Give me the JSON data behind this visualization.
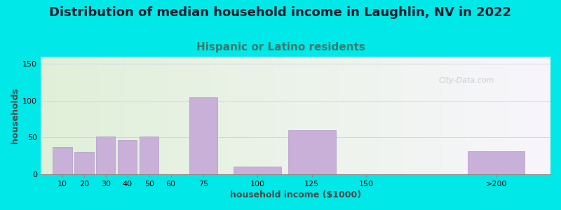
{
  "title": "Distribution of median household income in Laughlin, NV in 2022",
  "subtitle": "Hispanic or Latino residents",
  "xlabel": "household income ($1000)",
  "ylabel": "households",
  "bar_labels": [
    "10",
    "20",
    "30",
    "40",
    "50",
    "60",
    "75",
    "100",
    "125",
    "150",
    ">200"
  ],
  "bar_values": [
    37,
    30,
    51,
    47,
    51,
    0,
    105,
    10,
    60,
    0,
    31
  ],
  "bar_positions": [
    10,
    20,
    30,
    40,
    50,
    60,
    75,
    100,
    125,
    150,
    210
  ],
  "bar_width_real": [
    10,
    10,
    10,
    10,
    10,
    10,
    15,
    25,
    25,
    25,
    30
  ],
  "bar_color": "#c8b0d8",
  "bar_edge_color": "#b09ac8",
  "bg_outer": "#00e8e8",
  "ylim": [
    0,
    160
  ],
  "yticks": [
    0,
    50,
    100,
    150
  ],
  "title_fontsize": 13,
  "subtitle_fontsize": 11,
  "subtitle_color": "#3a7a6a",
  "axis_label_fontsize": 9,
  "tick_label_fontsize": 8,
  "watermark_text": "City-Data.com",
  "watermark_color": "#b8b8c8",
  "xlim": [
    0,
    235
  ],
  "xtick_positions": [
    10,
    20,
    30,
    40,
    50,
    60,
    75,
    100,
    125,
    150,
    210
  ],
  "title_color": "#1a1a2a"
}
